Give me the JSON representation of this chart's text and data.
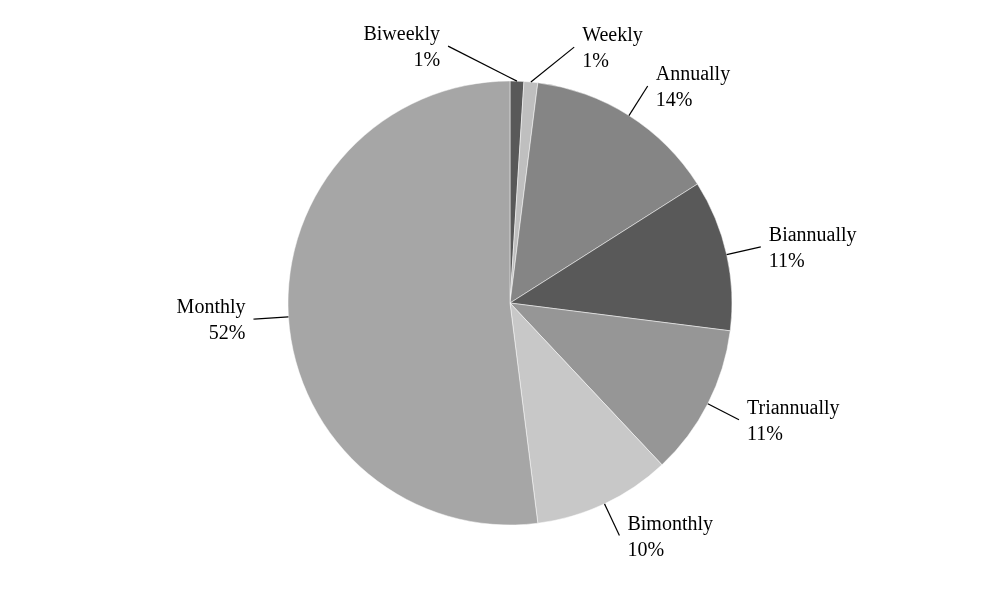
{
  "chart_data": {
    "type": "pie",
    "categories": [
      "Biweekly",
      "Weekly",
      "Annually",
      "Biannually",
      "Triannually",
      "Bimonthly",
      "Monthly"
    ],
    "values": [
      1,
      1,
      14,
      11,
      11,
      10,
      52
    ],
    "value_labels": [
      "1%",
      "1%",
      "14%",
      "11%",
      "11%",
      "10%",
      "52%"
    ],
    "colors": [
      "#595959",
      "#bfbfbf",
      "#858585",
      "#595959",
      "#969696",
      "#c8c8c8",
      "#a6a6a6"
    ]
  }
}
